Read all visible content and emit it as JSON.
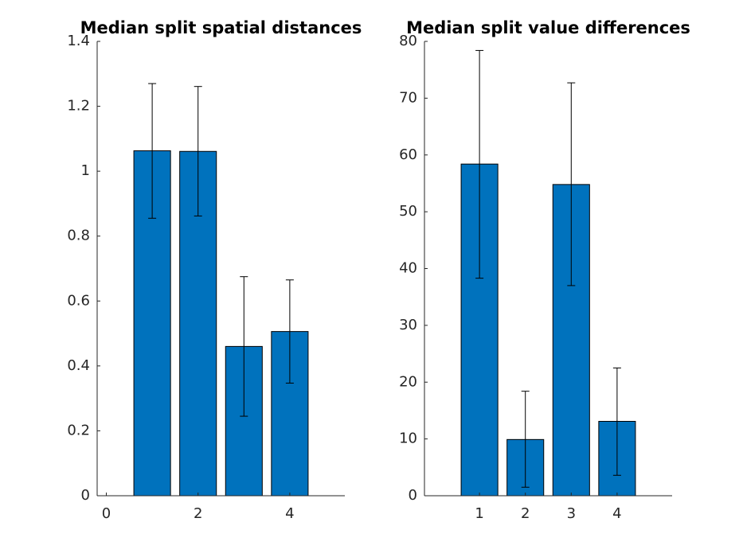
{
  "chart_data": [
    {
      "type": "bar",
      "title": "Median split spatial distances",
      "xlabel": "",
      "ylabel": "",
      "categories": [
        1,
        2,
        3,
        4
      ],
      "values": [
        1.063,
        1.061,
        0.46,
        0.506
      ],
      "error_low": [
        0.855,
        0.862,
        0.245,
        0.347
      ],
      "error_high": [
        1.27,
        1.261,
        0.675,
        0.665
      ],
      "xlim": [
        -0.2,
        5.2
      ],
      "ylim": [
        0,
        1.4
      ],
      "xticks": [
        0,
        2,
        4
      ],
      "yticks": [
        0,
        0.2,
        0.4,
        0.6,
        0.8,
        1,
        1.2,
        1.4
      ],
      "ytick_labels": [
        "0",
        "0.2",
        "0.4",
        "0.6",
        "0.8",
        "1",
        "1.2",
        "1.4"
      ],
      "bar_color": "#0072BD",
      "grid": false
    },
    {
      "type": "bar",
      "title": "Median split value differences",
      "xlabel": "",
      "ylabel": "",
      "categories": [
        1,
        2,
        3,
        4
      ],
      "values": [
        58.4,
        9.9,
        54.8,
        13.1
      ],
      "error_low": [
        38.3,
        1.5,
        37.0,
        3.6
      ],
      "error_high": [
        78.4,
        18.4,
        72.7,
        22.5
      ],
      "xlim": [
        -0.2,
        5.2
      ],
      "ylim": [
        0,
        80
      ],
      "xticks": [
        1,
        2,
        3,
        4
      ],
      "yticks": [
        0,
        10,
        20,
        30,
        40,
        50,
        60,
        70,
        80
      ],
      "ytick_labels": [
        "0",
        "10",
        "20",
        "30",
        "40",
        "50",
        "60",
        "70",
        "80"
      ],
      "bar_color": "#0072BD",
      "grid": false
    }
  ]
}
